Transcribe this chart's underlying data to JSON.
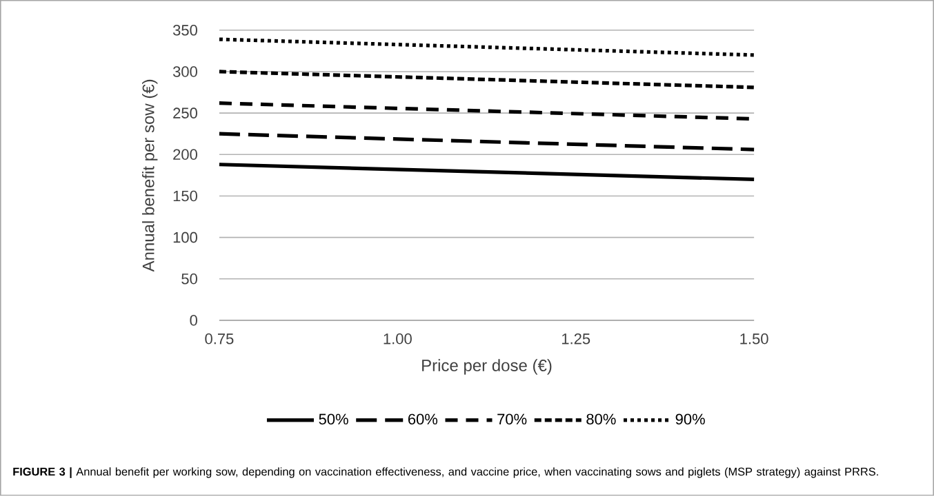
{
  "chart_data": {
    "type": "line",
    "xlabel": "Price per dose (€)",
    "ylabel": "Annual benefit per sow (€)",
    "x": [
      0.75,
      1.5
    ],
    "series": [
      {
        "name": "50%",
        "color": "#000000",
        "line_style": "solid",
        "values": [
          188,
          170
        ]
      },
      {
        "name": "60%",
        "color": "#000000",
        "line_style": "dashed",
        "values": [
          225,
          206
        ]
      },
      {
        "name": "70%",
        "color": "#000000",
        "line_style": "dashed",
        "values": [
          262,
          243
        ]
      },
      {
        "name": "80%",
        "color": "#000000",
        "line_style": "dashed",
        "values": [
          300,
          281
        ]
      },
      {
        "name": "90%",
        "color": "#000000",
        "line_style": "dotted",
        "values": [
          339,
          320
        ]
      }
    ],
    "xlim": [
      0.75,
      1.5
    ],
    "xticks": [
      {
        "value": 0.75,
        "label": "0.75"
      },
      {
        "value": 1.0,
        "label": "1.00"
      },
      {
        "value": 1.25,
        "label": "1.25"
      },
      {
        "value": 1.5,
        "label": "1.50"
      }
    ],
    "ylim": [
      0,
      350
    ],
    "yticks": [
      0,
      50,
      100,
      150,
      200,
      250,
      300,
      350
    ],
    "grid": "y",
    "legend": "bottom",
    "marker": "none",
    "annotations": [
      "**FIGURE 3 |** Annual benefit per working sow, depending on vaccination effectiveness, and vaccine price, when vaccinating sows and piglets (MSP strategy) against PRRS."
    ]
  }
}
